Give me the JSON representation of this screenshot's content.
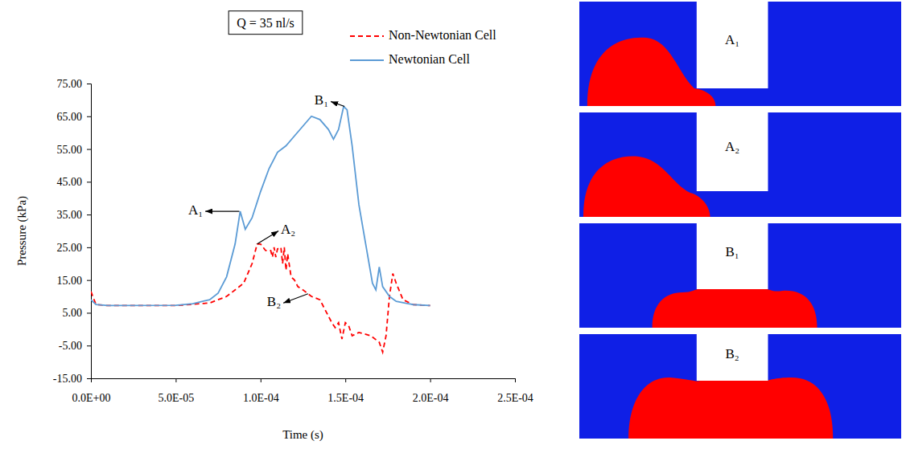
{
  "chart_data": {
    "type": "line",
    "title": "Q = 35 nl/s",
    "x_label": "Time (s)",
    "y_label": "Pressure (kPa)",
    "xlim": [
      0,
      0.00025
    ],
    "ylim": [
      -15,
      75
    ],
    "xticks": [
      {
        "value": 0,
        "label": "0.0E+00"
      },
      {
        "value": 5e-05,
        "label": "5.0E-05"
      },
      {
        "value": 0.0001,
        "label": "1.0E-04"
      },
      {
        "value": 0.00015,
        "label": "1.5E-04"
      },
      {
        "value": 0.0002,
        "label": "2.0E-04"
      },
      {
        "value": 0.00025,
        "label": "2.5E-04"
      }
    ],
    "yticks": [
      {
        "value": -15,
        "label": "-15.00"
      },
      {
        "value": -5,
        "label": "-5.00"
      },
      {
        "value": 5,
        "label": "5.00"
      },
      {
        "value": 15,
        "label": "15.00"
      },
      {
        "value": 25,
        "label": "25.00"
      },
      {
        "value": 35,
        "label": "35.00"
      },
      {
        "value": 45,
        "label": "45.00"
      },
      {
        "value": 55,
        "label": "55.00"
      },
      {
        "value": 65,
        "label": "65.00"
      },
      {
        "value": 75,
        "label": "75.00"
      }
    ],
    "grid": false,
    "legend": "top-right",
    "series": [
      {
        "name": "Non-Newtonian Cell",
        "color": "#ff0000",
        "line_style": "dashed",
        "x": [
          0,
          3e-06,
          1e-05,
          5e-05,
          7e-05,
          8e-05,
          9e-05,
          9.5e-05,
          9.8e-05,
          0.0001,
          0.000103,
          0.000106,
          0.000107,
          0.000108,
          0.000109,
          0.00011,
          0.000112,
          0.000113,
          0.000114,
          0.000115,
          0.000116,
          0.000118,
          0.00012,
          0.000122,
          0.000125,
          0.00013,
          0.000135,
          0.000138,
          0.000142,
          0.000144,
          0.000146,
          0.000148,
          0.00015,
          0.000152,
          0.000154,
          0.000158,
          0.000165,
          0.00017,
          0.000172,
          0.000174,
          0.000176,
          0.000178,
          0.00018,
          0.000184,
          0.00019,
          0.0002
        ],
        "values": [
          11.5,
          7.5,
          7.2,
          7.2,
          8,
          10,
          14,
          20,
          26,
          26,
          24,
          24,
          22,
          25,
          22,
          24.5,
          25,
          20,
          25,
          18,
          23,
          16,
          15,
          13,
          12,
          10,
          9,
          6,
          2,
          0.5,
          2,
          -3,
          2,
          1,
          -2,
          -1,
          -2,
          -4,
          -7,
          -2,
          10,
          17,
          14,
          9,
          7.5,
          7.2
        ]
      },
      {
        "name": "Newtonian Cell",
        "color": "#5b9bd5",
        "line_style": "solid",
        "x": [
          0,
          3e-06,
          1e-05,
          5e-05,
          6e-05,
          7e-05,
          7.5e-05,
          8e-05,
          8.5e-05,
          8.8e-05,
          9.1e-05,
          9.5e-05,
          0.0001,
          0.000105,
          0.00011,
          0.000115,
          0.00012,
          0.000125,
          0.00013,
          0.000135,
          0.00014,
          0.000143,
          0.000146,
          0.000149,
          0.000151,
          0.000154,
          0.000158,
          0.000162,
          0.000166,
          0.000168,
          0.00017,
          0.000172,
          0.000176,
          0.00018,
          0.00019,
          0.0002
        ],
        "values": [
          9,
          7.5,
          7.2,
          7.3,
          7.8,
          9,
          11,
          16,
          26,
          36,
          30.5,
          34,
          42,
          49,
          54,
          56,
          59,
          62,
          65,
          64,
          61,
          58,
          61,
          68,
          67,
          56,
          38,
          26,
          14,
          12,
          19,
          13,
          10,
          8.5,
          7.5,
          7.2
        ]
      }
    ],
    "annotations": [
      {
        "text": "A₁",
        "x": 8.75e-05,
        "y": 36,
        "text_x": 6.6e-05,
        "text_y": 36
      },
      {
        "text": "B₁",
        "x": 0.0001495,
        "y": 68,
        "text_x": 0.00014,
        "text_y": 69.5
      },
      {
        "text": "A₂",
        "x": 9.8e-05,
        "y": 26,
        "text_x": 0.000112,
        "text_y": 30
      },
      {
        "text": "B₂",
        "x": 0.000128,
        "y": 10.8,
        "text_x": 0.000112,
        "text_y": 8
      }
    ]
  },
  "panels": [
    {
      "label": "A₁"
    },
    {
      "label": "A₂"
    },
    {
      "label": "B₁"
    },
    {
      "label": "B₂"
    }
  ]
}
